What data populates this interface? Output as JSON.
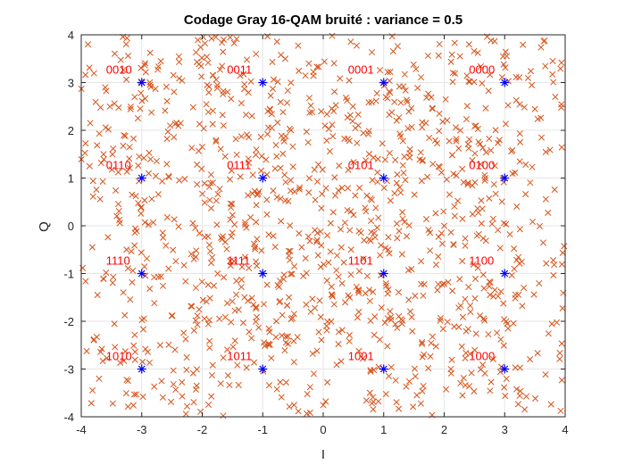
{
  "chart_data": {
    "type": "scatter",
    "title": "Codage Gray 16-QAM bruité : variance = 0.5",
    "xlabel": "I",
    "ylabel": "Q",
    "xlim": [
      -4,
      4
    ],
    "ylim": [
      -4,
      4
    ],
    "xticks": [
      -4,
      -3,
      -2,
      -1,
      0,
      1,
      2,
      3,
      4
    ],
    "yticks": [
      -4,
      -3,
      -2,
      -1,
      0,
      1,
      2,
      3,
      4
    ],
    "grid": true,
    "legend": "none",
    "colors": {
      "noise_marker": "#D95319",
      "constellation_marker": "#0000FF",
      "symbol_label": "#FF0000",
      "grid": "#E6E6E6",
      "axis": "#262626"
    },
    "series": [
      {
        "marker": "x",
        "color": "#D95319",
        "note_samples": 1400,
        "points_generated": "gaussian noise around each constellation point, variance 0.5, clipped to axes"
      },
      {
        "marker": "*",
        "color": "#0000FF",
        "x": [
          -3,
          -1,
          1,
          3,
          -3,
          -1,
          1,
          3,
          -3,
          -1,
          1,
          3,
          -3,
          -1,
          1,
          3
        ],
        "y": [
          3,
          3,
          3,
          3,
          1,
          1,
          1,
          1,
          -1,
          -1,
          -1,
          -1,
          -3,
          -3,
          -3,
          -3
        ]
      }
    ],
    "annotations": [
      {
        "text": "0010",
        "x": -3,
        "y": 3
      },
      {
        "text": "0011",
        "x": -1,
        "y": 3
      },
      {
        "text": "0001",
        "x": 1,
        "y": 3
      },
      {
        "text": "0000",
        "x": 3,
        "y": 3
      },
      {
        "text": "0110",
        "x": -3,
        "y": 1
      },
      {
        "text": "0111",
        "x": -1,
        "y": 1
      },
      {
        "text": "0101",
        "x": 1,
        "y": 1
      },
      {
        "text": "0100",
        "x": 3,
        "y": 1
      },
      {
        "text": "1110",
        "x": -3,
        "y": -1
      },
      {
        "text": "1111",
        "x": -1,
        "y": -1
      },
      {
        "text": "1101",
        "x": 1,
        "y": -1
      },
      {
        "text": "1100",
        "x": 3,
        "y": -1
      },
      {
        "text": "1010",
        "x": -3,
        "y": -3
      },
      {
        "text": "1011",
        "x": -1,
        "y": -3
      },
      {
        "text": "1001",
        "x": 1,
        "y": -3
      },
      {
        "text": "1000",
        "x": 3,
        "y": -3
      }
    ]
  }
}
